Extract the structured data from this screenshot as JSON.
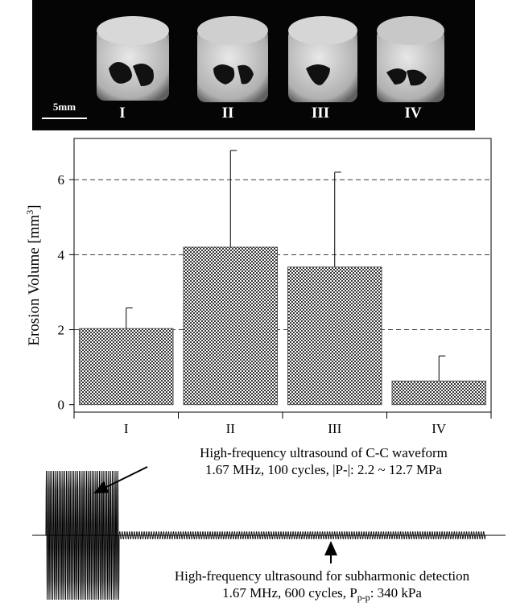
{
  "photo": {
    "scale_label": "5mm",
    "labels": [
      "I",
      "II",
      "III",
      "IV"
    ]
  },
  "chart_data": {
    "type": "bar",
    "y_label": {
      "text": "Erosion Volume [mm",
      "sup": "3",
      "end": "]"
    },
    "categories": [
      "I",
      "II",
      "III",
      "IV"
    ],
    "values": [
      2.03,
      4.2,
      3.67,
      0.63
    ],
    "errors": [
      0.55,
      2.58,
      2.53,
      0.67
    ],
    "color": "#555555",
    "ylim": [
      -0.2,
      7.1
    ],
    "yticks": [
      0,
      2,
      4,
      6
    ],
    "grid": true
  },
  "waveform": {
    "burst_annotation": [
      "High-frequency ultrasound of C-C waveform",
      "1.67 MHz, 100 cycles, |P-|: 2.2 ~ 12.7 MPa"
    ],
    "detection_annotation": {
      "line1": "High-frequency ultrasound for subharmonic detection",
      "prefix": "1.67 MHz, 600 cycles, P",
      "sub": "p-p",
      "suffix": ": 340 kPa"
    }
  }
}
